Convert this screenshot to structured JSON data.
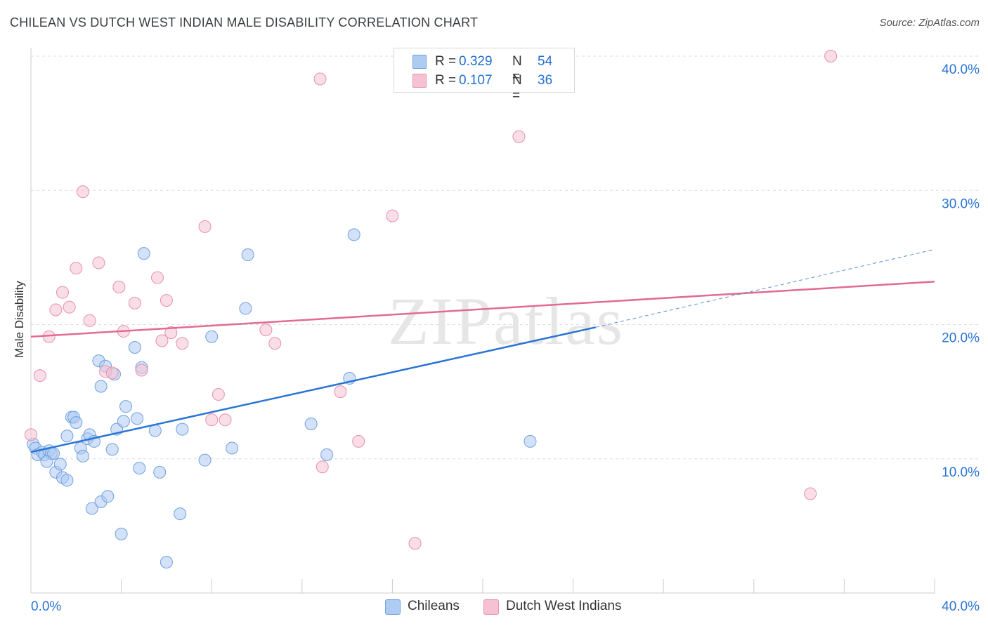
{
  "title": "CHILEAN VS DUTCH WEST INDIAN MALE DISABILITY CORRELATION CHART",
  "source": "Source: ZipAtlas.com",
  "watermark": "ZIPatlas",
  "legend_top": {
    "rows": [
      {
        "r_label": "R =",
        "r_value": "0.329",
        "n_label": "N =",
        "n_value": "54"
      },
      {
        "r_label": "R =",
        "r_value": "0.107",
        "n_label": "N =",
        "n_value": "36"
      }
    ]
  },
  "colors": {
    "chileans_fill": "#aecbf2",
    "chileans_stroke": "#6ea0e0",
    "chileans_line": "#2a74d5",
    "dutch_fill": "#f6c2d3",
    "dutch_stroke": "#e88fae",
    "dutch_line": "#e26a93",
    "axis_text": "#2a74d5",
    "grid": "#dddddd"
  },
  "chart_data": {
    "type": "scatter",
    "title": "CHILEAN VS DUTCH WEST INDIAN MALE DISABILITY CORRELATION CHART",
    "xlabel": "",
    "ylabel": "Male Disability",
    "xlim": [
      0,
      40
    ],
    "ylim": [
      0,
      40
    ],
    "x_tick_labels": [
      "0.0%",
      "40.0%"
    ],
    "y_ticks": [
      10,
      20,
      30,
      40
    ],
    "y_tick_labels": [
      "10.0%",
      "20.0%",
      "30.0%",
      "40.0%"
    ],
    "grid": true,
    "legend_position": "bottom",
    "series": [
      {
        "name": "Chileans",
        "points": [
          [
            0.1,
            11.1
          ],
          [
            0.2,
            10.8
          ],
          [
            0.3,
            10.3
          ],
          [
            0.5,
            10.5
          ],
          [
            0.6,
            10.3
          ],
          [
            0.8,
            10.6
          ],
          [
            0.9,
            10.4
          ],
          [
            0.7,
            9.8
          ],
          [
            1.0,
            10.4
          ],
          [
            1.1,
            9.0
          ],
          [
            1.3,
            9.6
          ],
          [
            1.4,
            8.6
          ],
          [
            1.6,
            8.4
          ],
          [
            1.6,
            11.7
          ],
          [
            1.8,
            13.1
          ],
          [
            1.9,
            13.1
          ],
          [
            2.0,
            12.7
          ],
          [
            2.2,
            10.8
          ],
          [
            2.3,
            10.2
          ],
          [
            2.5,
            11.5
          ],
          [
            2.6,
            11.8
          ],
          [
            2.7,
            6.3
          ],
          [
            2.8,
            11.3
          ],
          [
            3.0,
            17.3
          ],
          [
            3.1,
            15.4
          ],
          [
            3.1,
            6.8
          ],
          [
            3.3,
            16.9
          ],
          [
            3.4,
            7.2
          ],
          [
            3.6,
            10.7
          ],
          [
            3.7,
            16.3
          ],
          [
            3.8,
            12.2
          ],
          [
            4.0,
            4.4
          ],
          [
            4.1,
            12.8
          ],
          [
            4.2,
            13.9
          ],
          [
            4.6,
            18.3
          ],
          [
            4.7,
            13.0
          ],
          [
            4.8,
            9.3
          ],
          [
            4.9,
            16.8
          ],
          [
            5.0,
            25.3
          ],
          [
            5.5,
            12.1
          ],
          [
            5.7,
            9.0
          ],
          [
            6.0,
            2.3
          ],
          [
            6.6,
            5.9
          ],
          [
            6.7,
            12.2
          ],
          [
            7.7,
            9.9
          ],
          [
            8.0,
            19.1
          ],
          [
            8.9,
            10.8
          ],
          [
            9.5,
            21.2
          ],
          [
            9.6,
            25.2
          ],
          [
            12.4,
            12.6
          ],
          [
            13.1,
            10.3
          ],
          [
            14.1,
            16.0
          ],
          [
            14.3,
            26.7
          ],
          [
            22.1,
            11.3
          ]
        ],
        "trend": {
          "x": [
            0,
            25
          ],
          "y": [
            10.5,
            19.8
          ],
          "dashed_extension": {
            "x": [
              25,
              40
            ],
            "y": [
              19.8,
              25.6
            ]
          }
        }
      },
      {
        "name": "Dutch West Indians",
        "points": [
          [
            0.0,
            11.8
          ],
          [
            0.4,
            16.2
          ],
          [
            0.8,
            19.1
          ],
          [
            1.1,
            21.1
          ],
          [
            1.4,
            22.4
          ],
          [
            1.7,
            21.3
          ],
          [
            2.0,
            24.2
          ],
          [
            2.3,
            29.9
          ],
          [
            2.6,
            20.3
          ],
          [
            3.0,
            24.6
          ],
          [
            3.3,
            16.5
          ],
          [
            3.6,
            16.4
          ],
          [
            3.9,
            22.8
          ],
          [
            4.1,
            19.5
          ],
          [
            4.6,
            21.6
          ],
          [
            4.9,
            16.6
          ],
          [
            5.6,
            23.5
          ],
          [
            5.8,
            18.8
          ],
          [
            6.0,
            21.8
          ],
          [
            6.2,
            19.4
          ],
          [
            6.7,
            18.6
          ],
          [
            7.7,
            27.3
          ],
          [
            8.0,
            12.9
          ],
          [
            8.3,
            14.8
          ],
          [
            8.6,
            12.9
          ],
          [
            10.4,
            19.6
          ],
          [
            10.8,
            18.6
          ],
          [
            12.8,
            38.3
          ],
          [
            12.9,
            9.4
          ],
          [
            13.7,
            15.0
          ],
          [
            14.5,
            11.3
          ],
          [
            16.0,
            28.1
          ],
          [
            17.0,
            3.7
          ],
          [
            21.6,
            34.0
          ],
          [
            34.5,
            7.4
          ],
          [
            35.4,
            40.0
          ]
        ],
        "trend": {
          "x": [
            0,
            40
          ],
          "y": [
            19.1,
            23.2
          ]
        }
      }
    ]
  }
}
